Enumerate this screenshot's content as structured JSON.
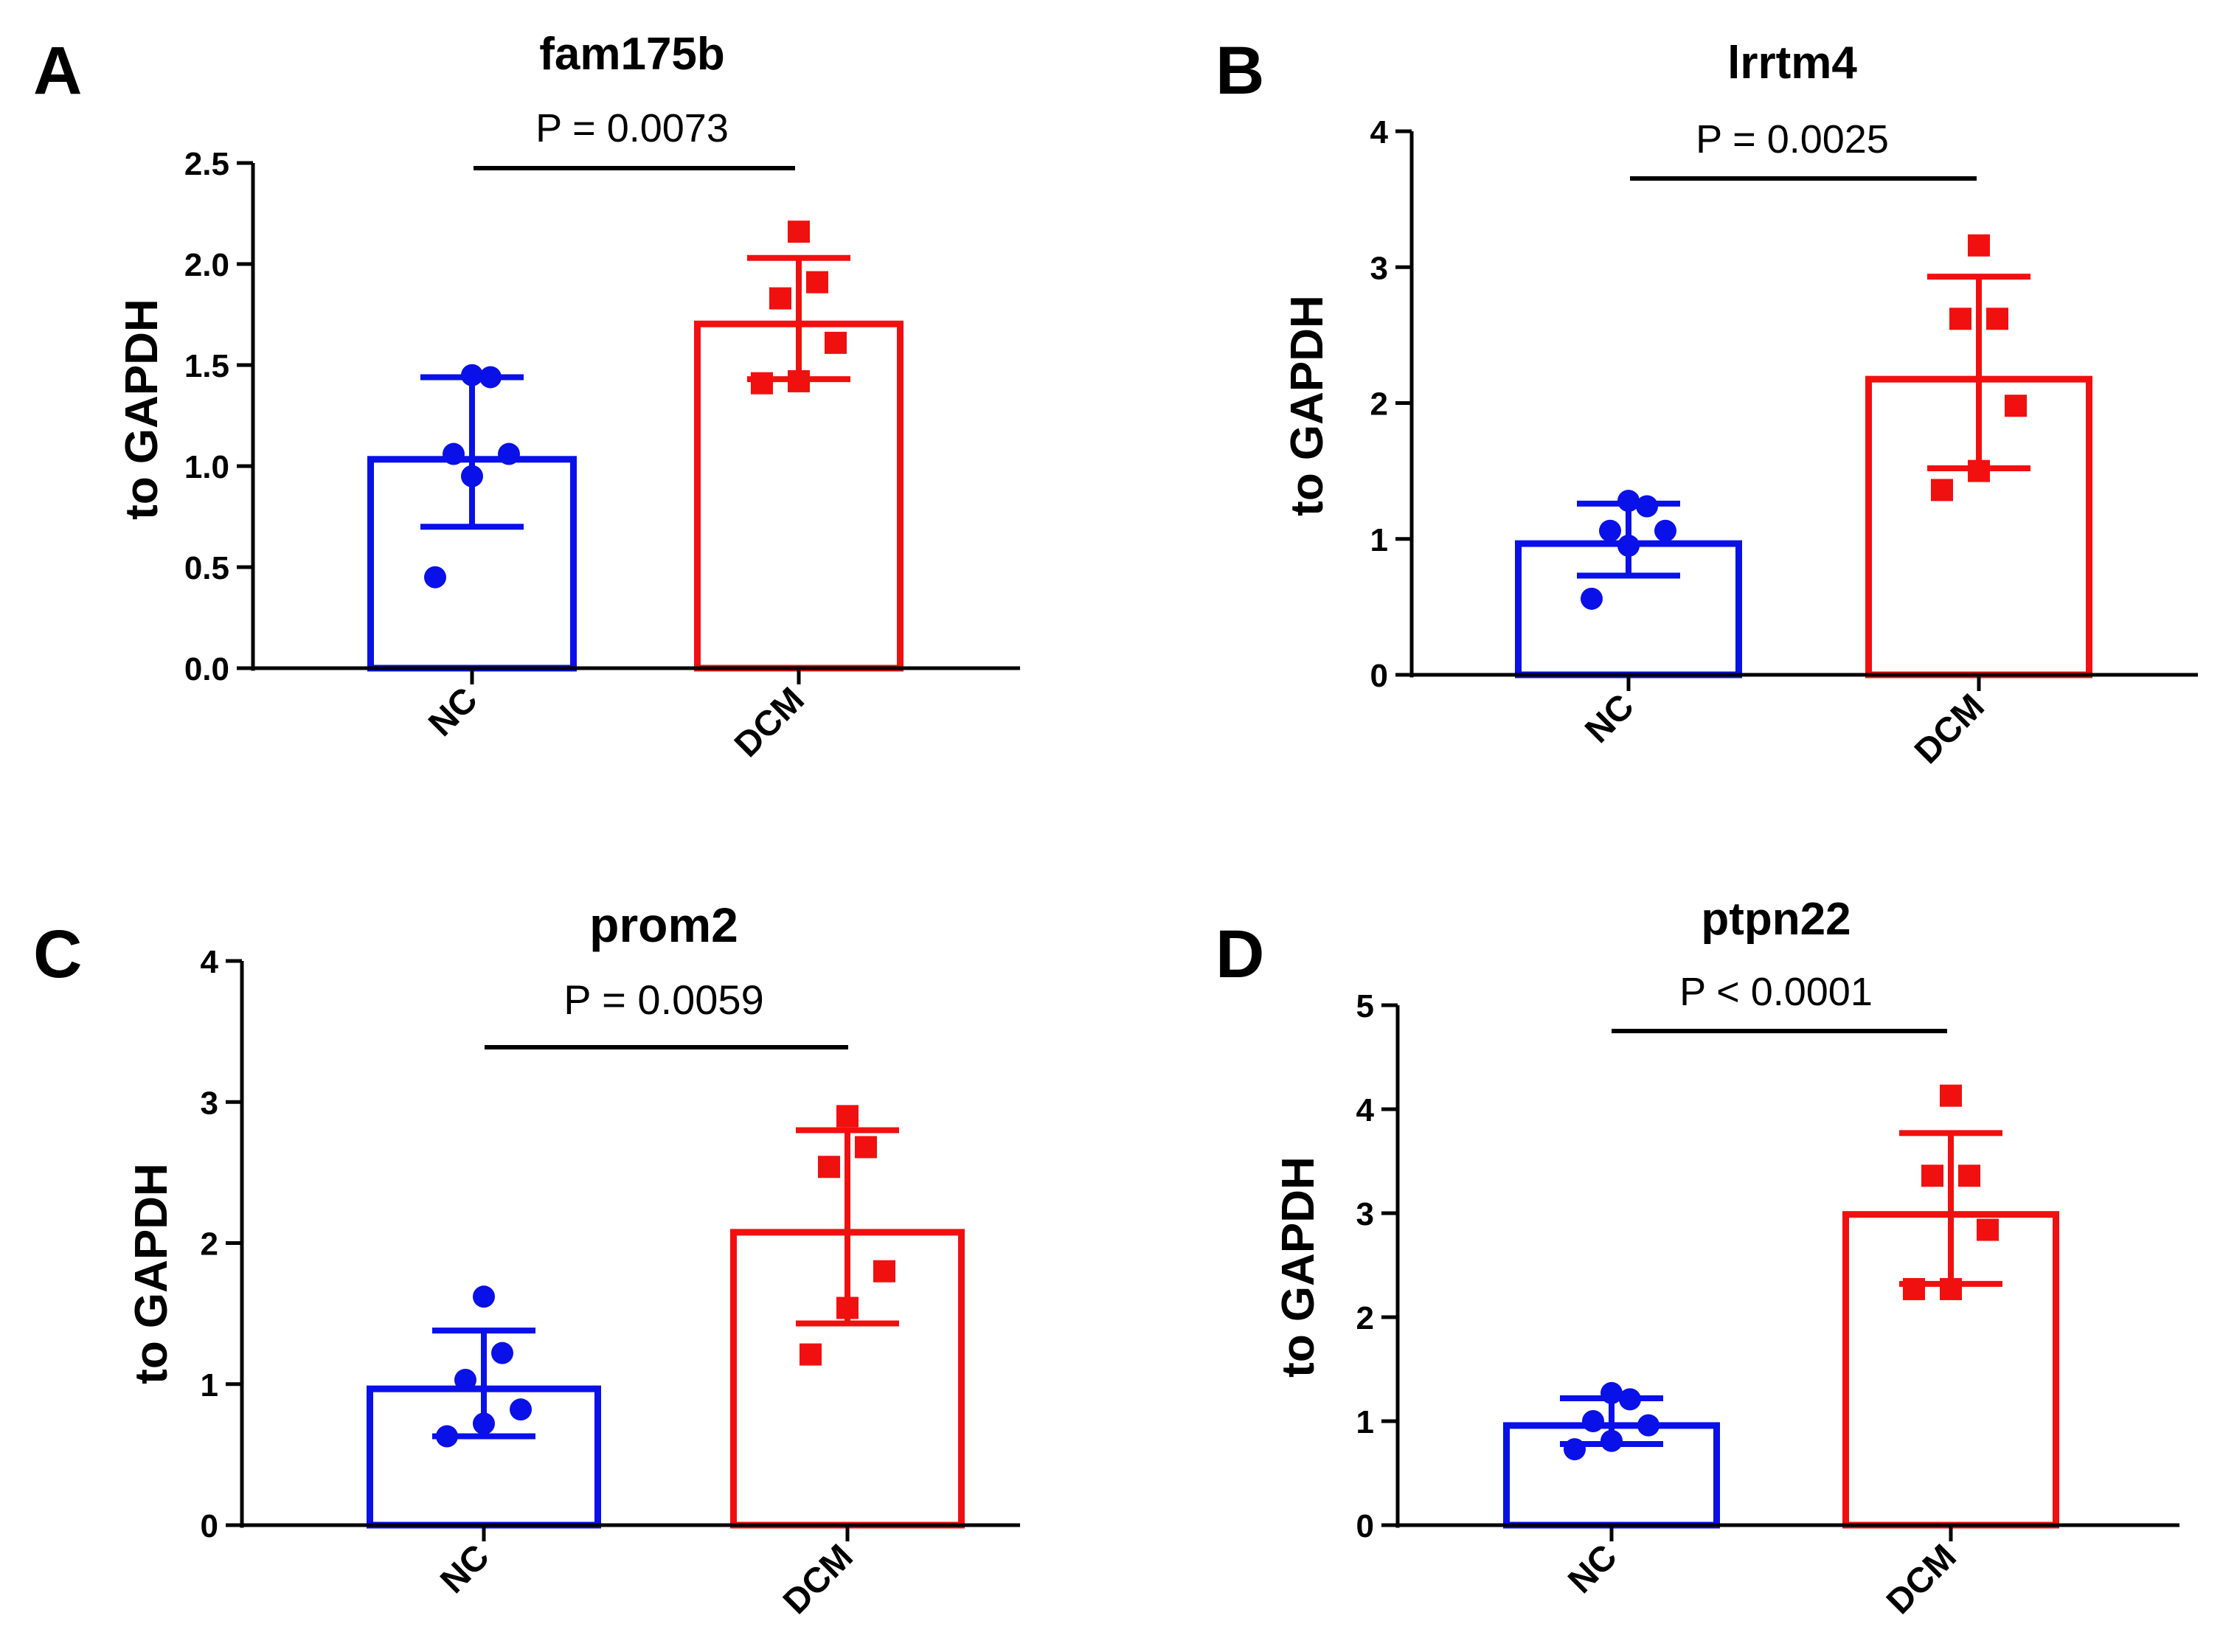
{
  "colors": {
    "nc": "#0a10e8",
    "dcm": "#f01010",
    "axis": "#000000"
  },
  "chart_data": [
    {
      "panel": "A",
      "type": "bar",
      "title": "fam175b",
      "ylabel": "to GAPDH",
      "xlabel": "",
      "categories": [
        "NC",
        "DCM"
      ],
      "ylim": [
        0,
        2.5
      ],
      "yticks": [
        "0.0",
        "0.5",
        "1.0",
        "1.5",
        "2.0",
        "2.5"
      ],
      "pvalue": "P = 0.0073",
      "series": [
        {
          "name": "NC",
          "mean": 1.05,
          "sd_low": 0.7,
          "sd_high": 1.44,
          "marker": "circle",
          "points": [
            0.45,
            0.95,
            1.06,
            1.06,
            1.44,
            1.45
          ]
        },
        {
          "name": "DCM",
          "mean": 1.72,
          "sd_low": 1.43,
          "sd_high": 2.03,
          "marker": "square",
          "points": [
            1.41,
            1.42,
            1.61,
            1.83,
            1.91,
            2.16
          ]
        }
      ]
    },
    {
      "panel": "B",
      "type": "bar",
      "title": "lrrtm4",
      "ylabel": "to GAPDH",
      "xlabel": "",
      "categories": [
        "NC",
        "DCM"
      ],
      "ylim": [
        0,
        4
      ],
      "yticks": [
        "0",
        "1",
        "2",
        "3",
        "4"
      ],
      "pvalue": "P = 0.0025",
      "series": [
        {
          "name": "NC",
          "mean": 0.99,
          "sd_low": 0.73,
          "sd_high": 1.26,
          "marker": "circle",
          "points": [
            0.56,
            0.95,
            1.06,
            1.06,
            1.24,
            1.28
          ]
        },
        {
          "name": "DCM",
          "mean": 2.2,
          "sd_low": 1.52,
          "sd_high": 2.93,
          "marker": "square",
          "points": [
            1.36,
            1.5,
            1.98,
            2.62,
            2.62,
            3.16
          ]
        }
      ]
    },
    {
      "panel": "C",
      "type": "bar",
      "title": "prom2",
      "ylabel": "to GAPDH",
      "xlabel": "",
      "categories": [
        "NC",
        "DCM"
      ],
      "ylim": [
        0,
        4
      ],
      "yticks": [
        "0",
        "1",
        "2",
        "3",
        "4"
      ],
      "pvalue": "P = 0.0059",
      "series": [
        {
          "name": "NC",
          "mean": 0.99,
          "sd_low": 0.63,
          "sd_high": 1.38,
          "marker": "circle",
          "points": [
            0.63,
            0.72,
            0.82,
            1.03,
            1.22,
            1.62
          ]
        },
        {
          "name": "DCM",
          "mean": 2.1,
          "sd_low": 1.43,
          "sd_high": 2.8,
          "marker": "square",
          "points": [
            1.21,
            1.54,
            1.8,
            2.54,
            2.68,
            2.9
          ]
        }
      ]
    },
    {
      "panel": "D",
      "type": "bar",
      "title": "ptpn22",
      "ylabel": "to GAPDH",
      "xlabel": "",
      "categories": [
        "NC",
        "DCM"
      ],
      "ylim": [
        0,
        5
      ],
      "yticks": [
        "0",
        "1",
        "2",
        "3",
        "4",
        "5"
      ],
      "pvalue": "P < 0.0001",
      "series": [
        {
          "name": "NC",
          "mean": 0.99,
          "sd_low": 0.78,
          "sd_high": 1.22,
          "marker": "circle",
          "points": [
            0.73,
            0.81,
            0.96,
            1.0,
            1.21,
            1.27
          ]
        },
        {
          "name": "DCM",
          "mean": 3.02,
          "sd_low": 2.32,
          "sd_high": 3.77,
          "marker": "square",
          "points": [
            2.27,
            2.27,
            2.84,
            3.36,
            3.36,
            4.13
          ]
        }
      ]
    }
  ]
}
